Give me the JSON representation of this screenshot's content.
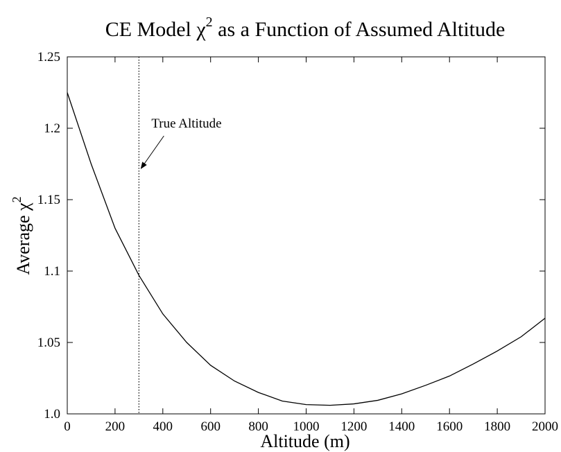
{
  "chart_data": {
    "type": "line",
    "title": {
      "before": "CE Model χ",
      "sup": "2",
      "after": " as a Function of Assumed Altitude"
    },
    "xlabel": "Altitude (m)",
    "ylabel": {
      "before": "Average χ",
      "sup": "2"
    },
    "x": [
      0,
      100,
      200,
      300,
      400,
      500,
      600,
      700,
      800,
      900,
      1000,
      1100,
      1200,
      1300,
      1400,
      1500,
      1600,
      1700,
      1800,
      1900,
      2000
    ],
    "values": [
      1.225,
      1.175,
      1.13,
      1.097,
      1.07,
      1.05,
      1.034,
      1.023,
      1.015,
      1.009,
      1.0065,
      1.006,
      1.007,
      1.0095,
      1.014,
      1.02,
      1.0265,
      1.035,
      1.044,
      1.054,
      1.067
    ],
    "color": "#000000",
    "xlim": [
      0,
      2000
    ],
    "ylim": [
      1,
      1.25
    ],
    "xticks": [
      0,
      200,
      400,
      600,
      800,
      1000,
      1200,
      1400,
      1600,
      1800,
      2000
    ],
    "yticks": [
      {
        "value": 1,
        "label": "1.0"
      },
      1.05,
      1.1,
      1.15,
      1.2,
      1.25
    ],
    "vline": 300,
    "annotation": "True Altitude"
  }
}
